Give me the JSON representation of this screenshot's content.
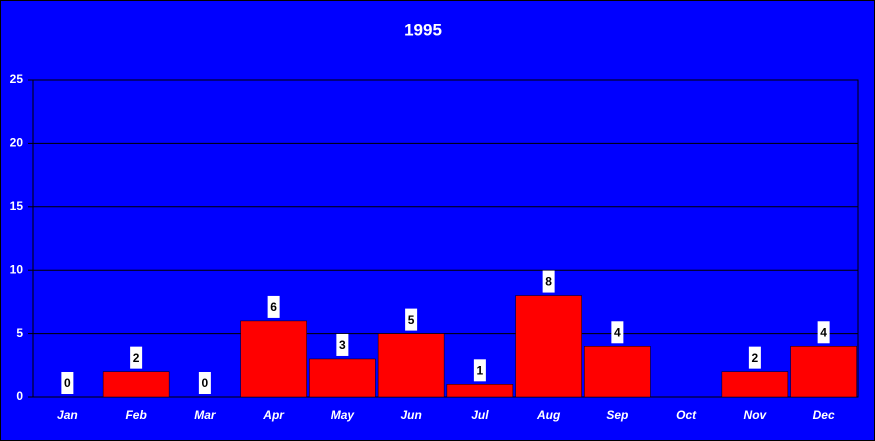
{
  "chart_data": {
    "type": "bar",
    "title": "1995",
    "categories": [
      "Jan",
      "Feb",
      "Mar",
      "Apr",
      "May",
      "Jun",
      "Jul",
      "Aug",
      "Sep",
      "Oct",
      "Nov",
      "Dec"
    ],
    "values": [
      0,
      2,
      0,
      6,
      3,
      5,
      1,
      8,
      4,
      null,
      2,
      4
    ],
    "color": "#ff0000",
    "ylim": [
      0,
      25
    ],
    "yticks": [
      0,
      5,
      10,
      15,
      20,
      25
    ],
    "grid": true
  }
}
